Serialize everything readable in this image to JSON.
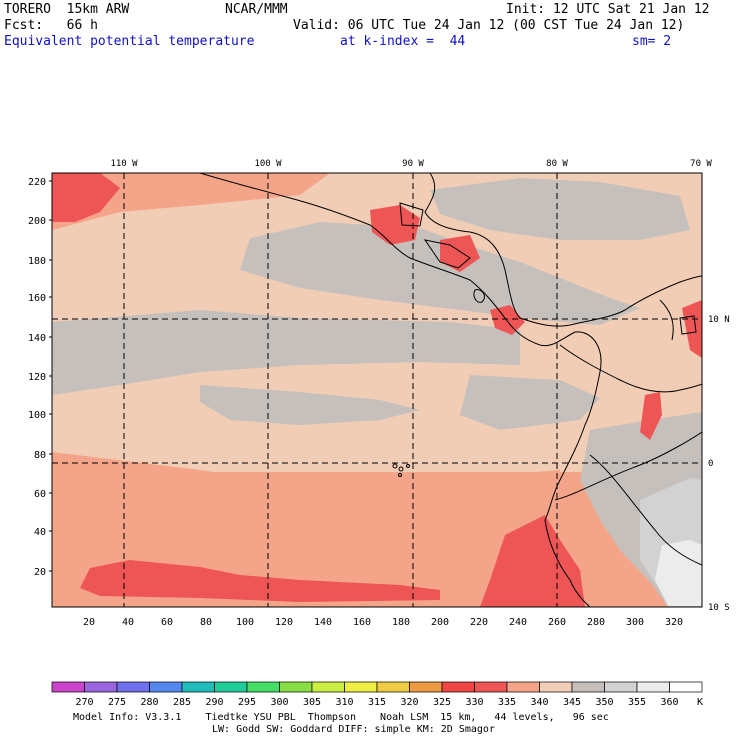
{
  "header": {
    "model": "TORERO  15km ARW",
    "org": "NCAR/MMM",
    "init": "Init: 12 UTC Sat 21 Jan 12",
    "fcst": "Fcst:   66 h",
    "valid": "Valid: 06 UTC Tue 24 Jan 12 (00 CST Tue 24 Jan 12)",
    "field": "Equivalent potential temperature",
    "level": "at k-index =  44",
    "smooth": "sm= 2"
  },
  "map": {
    "lon_labels": [
      "110 W",
      "100 W",
      "90 W",
      "80 W",
      "70 W"
    ],
    "lat_labels": [
      "10 N",
      "0",
      "10 S"
    ],
    "y_ticks": [
      "220",
      "200",
      "180",
      "160",
      "140",
      "120",
      "100",
      "80",
      "60",
      "40",
      "20"
    ],
    "x_ticks": [
      "20",
      "40",
      "60",
      "80",
      "100",
      "120",
      "140",
      "160",
      "180",
      "200",
      "220",
      "240",
      "260",
      "280",
      "300",
      "320"
    ]
  },
  "colorbar": {
    "labels": [
      "270",
      "275",
      "280",
      "285",
      "290",
      "295",
      "300",
      "305",
      "310",
      "315",
      "320",
      "325",
      "330",
      "335",
      "340",
      "345",
      "350",
      "355",
      "360"
    ],
    "unit": "K",
    "colors": [
      "#cc44cc",
      "#9966dd",
      "#7070ee",
      "#5588ee",
      "#22bbbb",
      "#22cc99",
      "#44dd66",
      "#88dd44",
      "#ccee44",
      "#eeee44",
      "#eecc44",
      "#ee9944",
      "#ee4444",
      "#ee5555",
      "#f4a488",
      "#f1cdb5",
      "#c6c0bc",
      "#d2d2d2",
      "#ececec",
      "#ffffff"
    ]
  },
  "footer": {
    "line1": "Model Info: V3.3.1    Tiedtke YSU PBL  Thompson    Noah LSM  15 km,   44 levels,   96 sec",
    "line2": "LW: Godd SW: Goddard DIFF: simple KM: 2D Smagor"
  }
}
